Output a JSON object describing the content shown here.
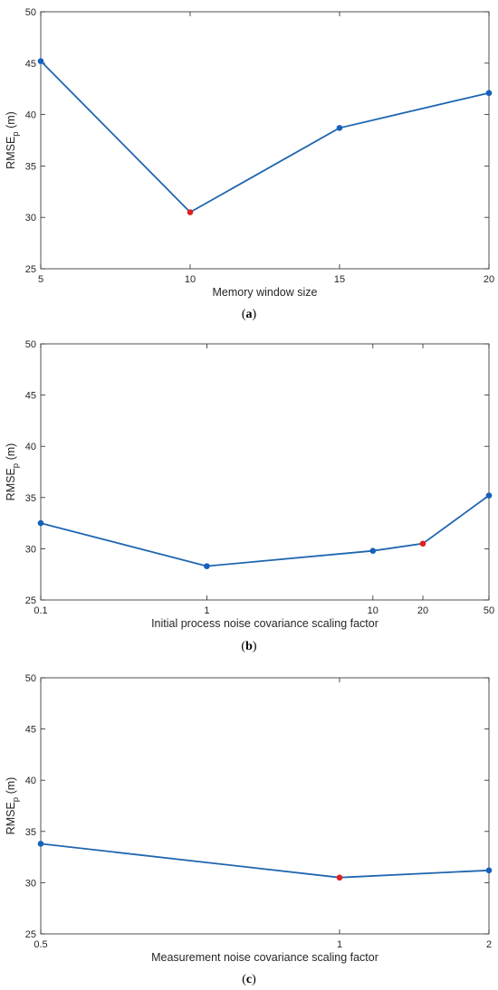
{
  "chart_data": [
    {
      "type": "line",
      "panel_label": "a",
      "xlabel": "Memory window size",
      "ylabel_main": "RMSE",
      "ylabel_sub": "p",
      "ylabel_unit": " (m)",
      "xscale": "linear",
      "xlim": [
        5,
        20
      ],
      "ylim": [
        25,
        50
      ],
      "xticks": [
        5,
        10,
        15,
        20
      ],
      "xtick_labels": [
        "5",
        "10",
        "15",
        "20"
      ],
      "yticks": [
        25,
        30,
        35,
        40,
        45,
        50
      ],
      "ytick_labels": [
        "25",
        "30",
        "35",
        "40",
        "45",
        "50"
      ],
      "x": [
        5,
        10,
        15,
        20
      ],
      "y": [
        45.2,
        30.5,
        38.7,
        42.1
      ],
      "highlight_index": 1,
      "line_color": "#1f66b0",
      "marker_color": "#1560bd",
      "highlight_color": "#e02020",
      "grid": false
    },
    {
      "type": "line",
      "panel_label": "b",
      "xlabel": "Initial process noise covariance scaling factor",
      "ylabel_main": "RMSE",
      "ylabel_sub": "p",
      "ylabel_unit": " (m)",
      "xscale": "log",
      "xlim": [
        0.1,
        50
      ],
      "ylim": [
        25,
        50
      ],
      "xticks": [
        0.1,
        1,
        10,
        20,
        50
      ],
      "xtick_labels": [
        "0.1",
        "1",
        "10",
        "20",
        "50"
      ],
      "yticks": [
        25,
        30,
        35,
        40,
        45,
        50
      ],
      "ytick_labels": [
        "25",
        "30",
        "35",
        "40",
        "45",
        "50"
      ],
      "x": [
        0.1,
        1,
        10,
        20,
        50
      ],
      "y": [
        32.5,
        28.3,
        29.8,
        30.5,
        35.2
      ],
      "highlight_index": 3,
      "line_color": "#1f66b0",
      "marker_color": "#1560bd",
      "highlight_color": "#e02020",
      "grid": false
    },
    {
      "type": "line",
      "panel_label": "c",
      "xlabel": "Measurement noise covariance scaling factor",
      "ylabel_main": "RMSE",
      "ylabel_sub": "p",
      "ylabel_unit": " (m)",
      "xscale": "reciprocal",
      "xlim": [
        0.5,
        2
      ],
      "ylim": [
        25,
        50
      ],
      "xticks": [
        0.5,
        1,
        2
      ],
      "xtick_labels": [
        "0.5",
        "1",
        "2"
      ],
      "yticks": [
        25,
        30,
        35,
        40,
        45,
        50
      ],
      "ytick_labels": [
        "25",
        "30",
        "35",
        "40",
        "45",
        "50"
      ],
      "x": [
        0.5,
        1,
        2
      ],
      "y": [
        33.8,
        30.5,
        31.2
      ],
      "highlight_index": 1,
      "line_color": "#1f66b0",
      "marker_color": "#1560bd",
      "highlight_color": "#e02020",
      "grid": false
    }
  ]
}
